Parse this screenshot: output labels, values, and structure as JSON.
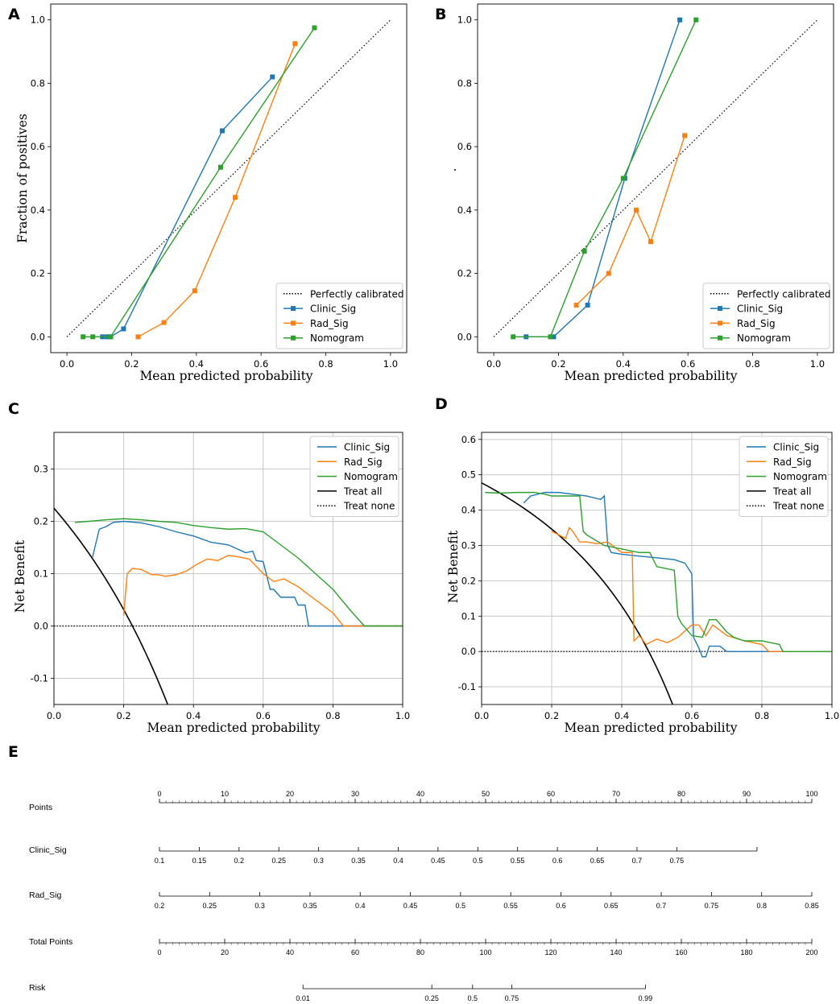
{
  "panel_letters": [
    "A",
    "B",
    "C",
    "D",
    "E"
  ],
  "colors": {
    "clinic": "#1f77b4",
    "rad": "#ff7f0e",
    "nomogram": "#2ca02c",
    "treat_all": "#000000",
    "ref": "#000000",
    "grid": "#c8c8c8"
  },
  "chart_data": [
    {
      "panel": "A",
      "type": "line",
      "subtype": "calibration",
      "xlabel": "Mean predicted probability",
      "ylabel": "Fraction of positives",
      "xlim": [
        -0.05,
        1.05
      ],
      "ylim": [
        -0.05,
        1.05
      ],
      "xticks": [
        "0.0",
        "0.2",
        "0.4",
        "0.6",
        "0.8",
        "1.0"
      ],
      "yticks": [
        "0.0",
        "0.2",
        "0.4",
        "0.6",
        "0.8",
        "1.0"
      ],
      "grid": false,
      "legend_position": "lower-right",
      "legend": [
        "Perfectly calibrated",
        "Clinic_Sig",
        "Rad_Sig",
        "Nomogram"
      ],
      "reference": {
        "name": "Perfectly calibrated",
        "x": [
          0,
          1
        ],
        "y": [
          0,
          1
        ]
      },
      "series": [
        {
          "name": "Clinic_Sig",
          "x": [
            0.11,
            0.125,
            0.135,
            0.175,
            0.48,
            0.635
          ],
          "y": [
            0.0,
            0.0,
            0.0,
            0.025,
            0.65,
            0.82
          ]
        },
        {
          "name": "Rad_Sig",
          "x": [
            0.22,
            0.3,
            0.395,
            0.52,
            0.705
          ],
          "y": [
            0.0,
            0.045,
            0.145,
            0.44,
            0.925
          ]
        },
        {
          "name": "Nomogram",
          "x": [
            0.05,
            0.08,
            0.135,
            0.475,
            0.765
          ],
          "y": [
            0.0,
            0.0,
            0.0,
            0.535,
            0.975
          ]
        }
      ]
    },
    {
      "panel": "B",
      "type": "line",
      "subtype": "calibration",
      "xlabel": "Mean predicted probability",
      "ylabel": "",
      "xlim": [
        -0.05,
        1.05
      ],
      "ylim": [
        -0.05,
        1.05
      ],
      "xticks": [
        "0.0",
        "0.2",
        "0.4",
        "0.6",
        "0.8",
        "1.0"
      ],
      "yticks": [
        "0.0",
        "0.2",
        "0.4",
        "0.6",
        "0.8",
        "1.0"
      ],
      "grid": false,
      "legend_position": "lower-right",
      "legend": [
        "Perfectly calibrated",
        "Clinic_Sig",
        "Rad_Sig",
        "Nomogram"
      ],
      "reference": {
        "name": "Perfectly calibrated",
        "x": [
          0,
          1
        ],
        "y": [
          0,
          1
        ]
      },
      "series": [
        {
          "name": "Clinic_Sig",
          "x": [
            0.1,
            0.185,
            0.29,
            0.405,
            0.575
          ],
          "y": [
            0.0,
            0.0,
            0.1,
            0.5,
            1.0
          ]
        },
        {
          "name": "Rad_Sig",
          "x": [
            0.255,
            0.355,
            0.44,
            0.485,
            0.59
          ],
          "y": [
            0.1,
            0.2,
            0.4,
            0.3,
            0.635
          ]
        },
        {
          "name": "Nomogram",
          "x": [
            0.06,
            0.175,
            0.28,
            0.4,
            0.625
          ],
          "y": [
            0.0,
            0.0,
            0.27,
            0.5,
            1.0
          ]
        }
      ]
    },
    {
      "panel": "C",
      "type": "line",
      "subtype": "decision_curve",
      "xlabel": "Mean predicted probability",
      "ylabel": "Net Benefit",
      "xlim": [
        0.0,
        1.0
      ],
      "ylim": [
        -0.15,
        0.37
      ],
      "xticks": [
        "0.0",
        "0.2",
        "0.4",
        "0.6",
        "0.8",
        "1.0"
      ],
      "yticks": [
        "-0.1",
        "0.0",
        "0.1",
        "0.2",
        "0.3"
      ],
      "grid": true,
      "legend_position": "top-right",
      "legend": [
        "Clinic_Sig",
        "Rad_Sig",
        "Nomogram",
        "Treat all",
        "Treat none"
      ],
      "treat_all_prevalence": 0.225,
      "series": [
        {
          "name": "Clinic_Sig",
          "x": [
            0.11,
            0.13,
            0.15,
            0.17,
            0.2,
            0.25,
            0.3,
            0.35,
            0.4,
            0.45,
            0.5,
            0.55,
            0.57,
            0.58,
            0.6,
            0.62,
            0.63,
            0.65,
            0.67,
            0.69,
            0.7,
            0.72,
            0.73,
            1.0
          ],
          "y": [
            0.13,
            0.185,
            0.19,
            0.198,
            0.2,
            0.197,
            0.19,
            0.18,
            0.172,
            0.16,
            0.155,
            0.14,
            0.143,
            0.125,
            0.123,
            0.07,
            0.07,
            0.055,
            0.055,
            0.055,
            0.04,
            0.04,
            0.0,
            0.0
          ]
        },
        {
          "name": "Rad_Sig",
          "x": [
            0.2,
            0.21,
            0.225,
            0.25,
            0.28,
            0.3,
            0.32,
            0.35,
            0.38,
            0.41,
            0.44,
            0.47,
            0.5,
            0.53,
            0.56,
            0.6,
            0.63,
            0.66,
            0.7,
            0.73,
            0.76,
            0.8,
            0.83,
            1.0
          ],
          "y": [
            0.02,
            0.1,
            0.11,
            0.108,
            0.098,
            0.098,
            0.095,
            0.098,
            0.105,
            0.118,
            0.128,
            0.125,
            0.135,
            0.132,
            0.128,
            0.1,
            0.085,
            0.09,
            0.075,
            0.06,
            0.045,
            0.025,
            0.0,
            0.0
          ]
        },
        {
          "name": "Nomogram",
          "x": [
            0.06,
            0.1,
            0.15,
            0.2,
            0.25,
            0.3,
            0.35,
            0.4,
            0.45,
            0.5,
            0.55,
            0.6,
            0.65,
            0.7,
            0.75,
            0.8,
            0.85,
            0.89,
            1.0
          ],
          "y": [
            0.198,
            0.2,
            0.203,
            0.205,
            0.203,
            0.2,
            0.198,
            0.192,
            0.188,
            0.185,
            0.186,
            0.18,
            0.155,
            0.13,
            0.1,
            0.07,
            0.03,
            0.0,
            0.0
          ]
        }
      ]
    },
    {
      "panel": "D",
      "type": "line",
      "subtype": "decision_curve",
      "xlabel": "Mean predicted probability",
      "ylabel": "Net Benefit",
      "xlim": [
        0.0,
        1.0
      ],
      "ylim": [
        -0.15,
        0.62
      ],
      "xticks": [
        "0.0",
        "0.2",
        "0.4",
        "0.6",
        "0.8",
        "1.0"
      ],
      "yticks": [
        "-0.1",
        "0.0",
        "0.1",
        "0.2",
        "0.3",
        "0.4",
        "0.5",
        "0.6"
      ],
      "grid": true,
      "legend_position": "top-right",
      "legend": [
        "Clinic_Sig",
        "Rad_Sig",
        "Nomogram",
        "Treat all",
        "Treat none"
      ],
      "treat_all_prevalence": 0.477,
      "series": [
        {
          "name": "Clinic_Sig",
          "x": [
            0.12,
            0.14,
            0.16,
            0.18,
            0.22,
            0.26,
            0.3,
            0.34,
            0.35,
            0.36,
            0.37,
            0.4,
            0.45,
            0.5,
            0.55,
            0.58,
            0.6,
            0.605,
            0.62,
            0.63,
            0.64,
            0.65,
            0.68,
            0.7,
            1.0
          ],
          "y": [
            0.42,
            0.44,
            0.445,
            0.45,
            0.45,
            0.445,
            0.44,
            0.43,
            0.44,
            0.3,
            0.28,
            0.275,
            0.27,
            0.265,
            0.26,
            0.25,
            0.22,
            0.04,
            0.01,
            -0.015,
            -0.015,
            0.015,
            0.015,
            0.0,
            0.0
          ]
        },
        {
          "name": "Rad_Sig",
          "x": [
            0.2,
            0.22,
            0.24,
            0.25,
            0.26,
            0.28,
            0.3,
            0.33,
            0.36,
            0.4,
            0.43,
            0.435,
            0.45,
            0.47,
            0.5,
            0.53,
            0.56,
            0.6,
            0.62,
            0.64,
            0.66,
            0.7,
            0.75,
            0.8,
            0.82,
            1.0
          ],
          "y": [
            0.34,
            0.33,
            0.32,
            0.35,
            0.34,
            0.31,
            0.31,
            0.305,
            0.31,
            0.28,
            0.28,
            0.03,
            0.045,
            0.02,
            0.035,
            0.025,
            0.04,
            0.075,
            0.075,
            0.045,
            0.075,
            0.045,
            0.03,
            0.02,
            0.0,
            0.0
          ]
        },
        {
          "name": "Nomogram",
          "x": [
            0.01,
            0.05,
            0.1,
            0.15,
            0.18,
            0.2,
            0.25,
            0.28,
            0.29,
            0.3,
            0.35,
            0.4,
            0.45,
            0.48,
            0.5,
            0.55,
            0.56,
            0.57,
            0.6,
            0.63,
            0.65,
            0.67,
            0.7,
            0.72,
            0.75,
            0.8,
            0.85,
            0.86,
            1.0
          ],
          "y": [
            0.45,
            0.448,
            0.45,
            0.45,
            0.445,
            0.44,
            0.44,
            0.44,
            0.34,
            0.33,
            0.3,
            0.29,
            0.28,
            0.28,
            0.24,
            0.23,
            0.1,
            0.08,
            0.045,
            0.04,
            0.09,
            0.09,
            0.055,
            0.04,
            0.03,
            0.03,
            0.02,
            0.0,
            0.0
          ]
        }
      ]
    },
    {
      "panel": "E",
      "type": "nomogram",
      "rows": [
        {
          "name": "Points",
          "min": 0,
          "max": 100,
          "ticks": [
            0,
            10,
            20,
            30,
            40,
            50,
            60,
            70,
            80,
            90,
            100
          ],
          "labels": [
            "0",
            "10",
            "20",
            "30",
            "40",
            "50",
            "60",
            "70",
            "80",
            "90",
            "100"
          ],
          "minor": 1,
          "label_side": "above"
        },
        {
          "name": "Clinic_Sig",
          "min": 0,
          "max": 91.6,
          "ticks": [
            0,
            6.1,
            12.2,
            18.3,
            24.4,
            30.5,
            36.6,
            42.7,
            48.8,
            54.9,
            61.0,
            67.1,
            73.2,
            79.3,
            91.6
          ],
          "labels": [
            "0.1",
            "0.15",
            "0.2",
            "0.25",
            "0.3",
            "0.35",
            "0.4",
            "0.45",
            "0.5",
            "0.55",
            "0.6",
            "0.65",
            "0.7",
            "0.75",
            ""
          ],
          "minor": 0,
          "label_side": "below"
        },
        {
          "name": "Rad_Sig",
          "min": 0,
          "max": 100,
          "ticks": [
            0,
            7.69,
            15.38,
            23.08,
            30.77,
            38.46,
            46.15,
            53.85,
            61.54,
            69.23,
            76.92,
            84.62,
            92.31,
            100
          ],
          "labels": [
            "0.2",
            "0.25",
            "0.3",
            "0.35",
            "0.4",
            "0.45",
            "0.5",
            "0.55",
            "0.6",
            "0.65",
            "0.7",
            "0.75",
            "0.8",
            "0.85"
          ],
          "minor": 0,
          "label_side": "below"
        },
        {
          "name": "Total Points",
          "min": 0,
          "max": 200,
          "ticks": [
            0,
            20,
            40,
            60,
            80,
            100,
            120,
            140,
            160,
            180,
            200
          ],
          "labels": [
            "0",
            "20",
            "40",
            "60",
            "80",
            "100",
            "120",
            "140",
            "160",
            "180",
            "200"
          ],
          "minor": 2,
          "label_side": "below"
        },
        {
          "name": "Risk",
          "min": 44,
          "max": 149,
          "ticks": [
            44,
            83.5,
            96,
            108,
            149
          ],
          "labels": [
            "0.01",
            "0.25",
            "0.5",
            "0.75",
            "0.99"
          ],
          "minor": 0,
          "label_side": "below"
        }
      ]
    }
  ]
}
